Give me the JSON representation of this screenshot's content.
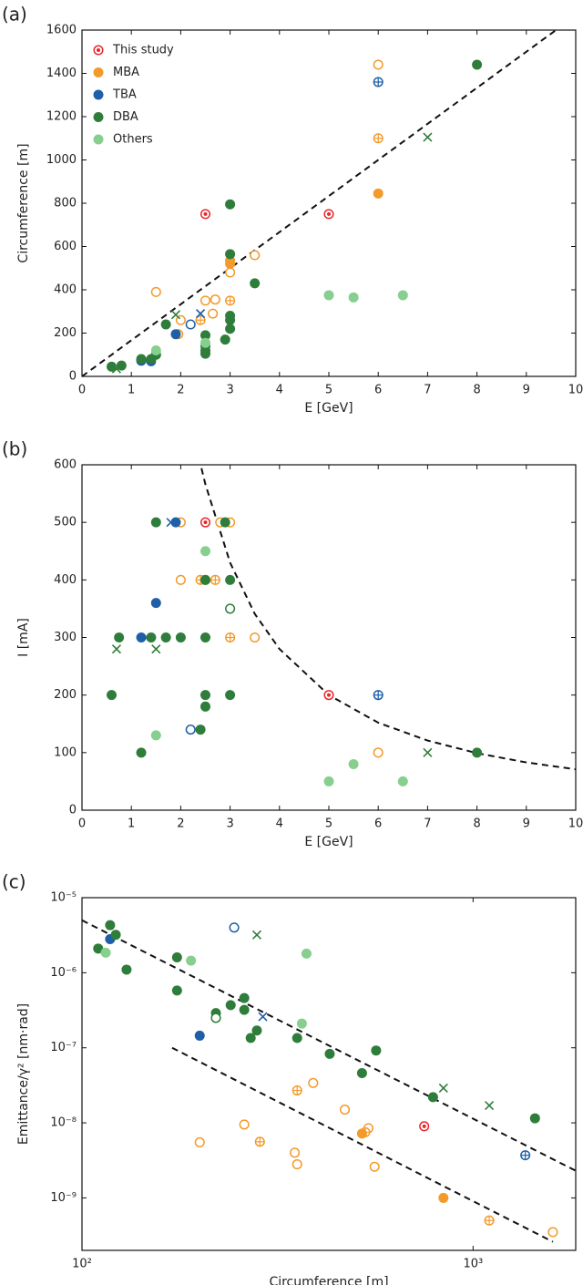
{
  "chart_data": [
    {
      "type": "scatter",
      "panel_label": "(a)",
      "xlabel": "E [GeV]",
      "ylabel": "Circumference [m]",
      "xlim": [
        0,
        10
      ],
      "ylim": [
        0,
        1600
      ],
      "xticks": [
        0,
        1,
        2,
        3,
        4,
        5,
        6,
        7,
        8,
        9,
        10
      ],
      "yticks": [
        0,
        200,
        400,
        600,
        800,
        1000,
        1200,
        1400,
        1600
      ],
      "legend": "upper left",
      "series": [
        {
          "name": "This study",
          "color": "#e8262b",
          "x": [
            2.5,
            5
          ],
          "y": [
            750,
            750
          ],
          "markers": [
            "target",
            "target"
          ]
        },
        {
          "name": "MBA",
          "color": "#f39a2b",
          "x": [
            3,
            3,
            6,
            1.5,
            2,
            2.5,
            2.7,
            3,
            3.5,
            1.95,
            6,
            2.4,
            3,
            6,
            2.65
          ],
          "y": [
            520,
            535,
            1440,
            390,
            260,
            350,
            355,
            480,
            560,
            195,
            1100,
            260,
            350,
            845,
            290
          ],
          "markers": [
            "filled",
            "filled",
            "open",
            "open",
            "open",
            "open",
            "open",
            "open",
            "open",
            "open",
            "plus",
            "plus",
            "plus",
            "filled",
            "open"
          ]
        },
        {
          "name": "TBA",
          "color": "#1f5fa8",
          "x": [
            6,
            2.2,
            2.4,
            1.2,
            1.9,
            1.4
          ],
          "y": [
            1360,
            240,
            290,
            72,
            195,
            70
          ],
          "markers": [
            "plus",
            "open",
            "cross",
            "filled",
            "filled",
            "filled"
          ]
        },
        {
          "name": "DBA",
          "color": "#2e7d3a",
          "x": [
            8,
            3,
            3,
            3.5,
            3,
            3,
            3,
            2.5,
            2.5,
            2.5,
            2.5,
            2.9,
            1.7,
            1.5,
            1.2,
            0.6,
            0.8,
            1.4,
            7,
            1.9,
            0.7
          ],
          "y": [
            1440,
            795,
            565,
            430,
            280,
            260,
            220,
            190,
            140,
            120,
            105,
            170,
            240,
            100,
            80,
            45,
            50,
            80,
            1105,
            285,
            35
          ],
          "markers": [
            "filled",
            "filled",
            "filled",
            "filled",
            "filled",
            "filled",
            "filled",
            "filled",
            "filled",
            "filled",
            "filled",
            "filled",
            "filled",
            "filled",
            "filled",
            "filled",
            "filled",
            "filled",
            "cross",
            "cross",
            "cross"
          ]
        },
        {
          "name": "Others",
          "color": "#86cf8e",
          "x": [
            5,
            5.5,
            6.5,
            1.5,
            2.5
          ],
          "y": [
            375,
            365,
            375,
            120,
            155
          ],
          "markers": [
            "filled",
            "filled",
            "filled",
            "filled",
            "filled"
          ]
        }
      ],
      "fit_lines": [
        {
          "x": [
            0,
            9.6
          ],
          "y": [
            0,
            1600
          ]
        }
      ]
    },
    {
      "type": "scatter",
      "panel_label": "(b)",
      "xlabel": "E [GeV]",
      "ylabel": "I [mA]",
      "xlim": [
        0,
        10
      ],
      "ylim": [
        0,
        600
      ],
      "xticks": [
        0,
        1,
        2,
        3,
        4,
        5,
        6,
        7,
        8,
        9,
        10
      ],
      "yticks": [
        0,
        100,
        200,
        300,
        400,
        500,
        600
      ],
      "series": [
        {
          "color": "#e8262b",
          "x": [
            2.5,
            5
          ],
          "y": [
            500,
            200
          ],
          "markers": [
            "target",
            "target"
          ]
        },
        {
          "color": "#f39a2b",
          "x": [
            2,
            2.8,
            3,
            2,
            2.5,
            3.5,
            6,
            2.7,
            3,
            2.4
          ],
          "y": [
            500,
            500,
            500,
            400,
            400,
            300,
            100,
            400,
            300,
            400
          ],
          "markers": [
            "open",
            "open",
            "open",
            "open",
            "open",
            "open",
            "open",
            "plus",
            "plus",
            "plus"
          ]
        },
        {
          "color": "#1f5fa8",
          "x": [
            1.9,
            1.5,
            1.2,
            1.8,
            2.2,
            6
          ],
          "y": [
            500,
            360,
            300,
            500,
            140,
            200
          ],
          "markers": [
            "filled",
            "filled",
            "filled",
            "cross",
            "open",
            "plus"
          ]
        },
        {
          "color": "#2e7d3a",
          "x": [
            1.5,
            2.5,
            3,
            2.9,
            0.75,
            1.4,
            1.7,
            2,
            2.5,
            0.6,
            2.5,
            3,
            2.5,
            2.4,
            1.2,
            8,
            3,
            0.7,
            1.5,
            7
          ],
          "y": [
            500,
            400,
            400,
            500,
            300,
            300,
            300,
            300,
            300,
            200,
            200,
            200,
            180,
            140,
            100,
            100,
            350,
            280,
            280,
            100
          ],
          "markers": [
            "filled",
            "filled",
            "filled",
            "filled",
            "filled",
            "filled",
            "filled",
            "filled",
            "filled",
            "filled",
            "filled",
            "filled",
            "filled",
            "filled",
            "filled",
            "filled",
            "open",
            "cross",
            "cross",
            "cross"
          ]
        },
        {
          "color": "#86cf8e",
          "x": [
            2.5,
            1.5,
            5,
            5.5,
            6.5
          ],
          "y": [
            450,
            130,
            50,
            80,
            50
          ],
          "markers": [
            "filled",
            "filled",
            "filled",
            "filled",
            "filled"
          ]
        }
      ],
      "fit_lines": [
        {
          "x": [
            2.42,
            2.5,
            3,
            3.5,
            4,
            5,
            6,
            7,
            8,
            9,
            10
          ],
          "y": [
            594,
            566,
            430,
            341,
            280,
            200,
            152,
            121,
            99,
            83,
            71
          ]
        }
      ]
    },
    {
      "type": "scatter",
      "panel_label": "(c)",
      "xlabel": "Circumference [m]",
      "ylabel": "Emittance/γ² [nm·rad]",
      "xlog": true,
      "ylog": true,
      "xlim": [
        100,
        1830
      ],
      "ylim": [
        2e-10,
        1e-05
      ],
      "xticks": [
        {
          "value": 100,
          "label": "10²"
        },
        {
          "value": 1000,
          "label": "10³"
        }
      ],
      "yticks": [
        {
          "value": 1e-09,
          "label": "10⁻⁹"
        },
        {
          "value": 1e-08,
          "label": "10⁻⁸"
        },
        {
          "value": 1e-07,
          "label": "10⁻⁷"
        },
        {
          "value": 1e-06,
          "label": "10⁻⁶"
        },
        {
          "value": 1e-05,
          "label": "10⁻⁵"
        }
      ],
      "series": [
        {
          "color": "#e8262b",
          "x": [
            750
          ],
          "y": [
            9e-09
          ],
          "markers": [
            "target"
          ]
        },
        {
          "color": "#f39a2b",
          "x": [
            200,
            260,
            350,
            355,
            390,
            470,
            540,
            560,
            1600,
            285,
            355,
            1100,
            530,
            840,
            520
          ],
          "y": [
            5.5e-09,
            9.5e-09,
            4e-09,
            2.8e-09,
            3.4e-08,
            1.5e-08,
            8.5e-09,
            2.6e-09,
            3.5e-10,
            5.6e-09,
            2.7e-08,
            5e-10,
            7.5e-09,
            1e-09,
            7.2e-09
          ],
          "markers": [
            "open",
            "open",
            "open",
            "open",
            "open",
            "open",
            "open",
            "open",
            "open",
            "plus",
            "plus",
            "plus",
            "plus",
            "filled",
            "filled"
          ]
        },
        {
          "color": "#1f5fa8",
          "x": [
            118,
            200,
            245,
            290,
            1360
          ],
          "y": [
            2.8e-06,
            1.45e-07,
            4e-06,
            2.6e-07,
            3.7e-09
          ],
          "markers": [
            "filled",
            "filled",
            "open",
            "cross",
            "plus"
          ]
        },
        {
          "color": "#2e7d3a",
          "x": [
            110,
            118,
            122,
            130,
            175,
            175,
            220,
            240,
            260,
            260,
            270,
            280,
            355,
            430,
            520,
            565,
            790,
            1440,
            220,
            280,
            840,
            1100
          ],
          "y": [
            2.1e-06,
            4.3e-06,
            3.2e-06,
            1.1e-06,
            1.6e-06,
            5.8e-07,
            2.9e-07,
            3.7e-07,
            4.6e-07,
            3.2e-07,
            1.35e-07,
            1.7e-07,
            1.35e-07,
            8.3e-08,
            4.6e-08,
            9.2e-08,
            2.2e-08,
            1.15e-08,
            2.5e-07,
            3.2e-06,
            2.9e-08,
            1.7e-08
          ],
          "markers": [
            "filled",
            "filled",
            "filled",
            "filled",
            "filled",
            "filled",
            "filled",
            "filled",
            "filled",
            "filled",
            "filled",
            "filled",
            "filled",
            "filled",
            "filled",
            "filled",
            "filled",
            "filled",
            "open",
            "cross",
            "cross",
            "cross"
          ]
        },
        {
          "color": "#86cf8e",
          "x": [
            115,
            190,
            375,
            365
          ],
          "y": [
            1.85e-06,
            1.45e-06,
            1.8e-06,
            2.1e-07
          ],
          "markers": [
            "filled",
            "filled",
            "filled",
            "filled"
          ]
        }
      ],
      "fit_lines": [
        {
          "x": [
            100,
            1830
          ],
          "y": [
            5e-06,
            2.3e-09
          ]
        },
        {
          "x": [
            170,
            1600
          ],
          "y": [
            1e-07,
            2.6e-10
          ]
        }
      ]
    }
  ]
}
